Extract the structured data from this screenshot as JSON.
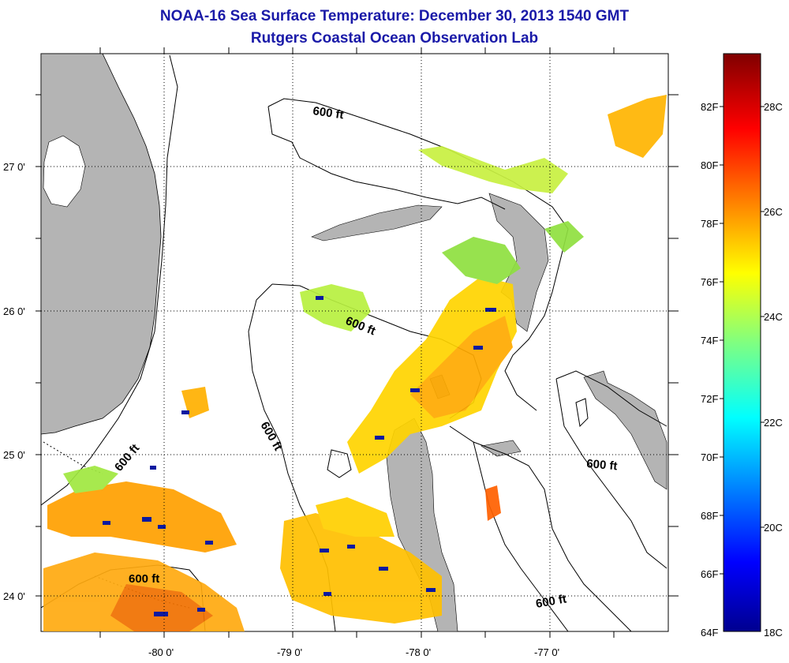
{
  "title": "NOAA-16 Sea Surface Temperature:  December 30, 2013 1540 GMT",
  "subtitle": "Rutgers Coastal Ocean Observation Lab",
  "map": {
    "lat_labels": [
      "27 0'",
      "26 0'",
      "25 0'",
      "24 0'"
    ],
    "lon_labels": [
      "-80 0'",
      "-79 0'",
      "-78 0'",
      "-77 0'"
    ],
    "contour_labels": [
      "600 ft",
      "600 ft",
      "600 ft",
      "600 ft",
      "600 ft",
      "600 ft"
    ],
    "land_color": "#b4b4b4",
    "grid": "dotted"
  },
  "colorbar": {
    "f_labels": [
      "82F",
      "80F",
      "78F",
      "76F",
      "74F",
      "72F",
      "70F",
      "68F",
      "66F",
      "64F"
    ],
    "c_labels": [
      "28C",
      "26C",
      "24C",
      "22C",
      "20C",
      "18C"
    ],
    "colormap": "jet"
  }
}
